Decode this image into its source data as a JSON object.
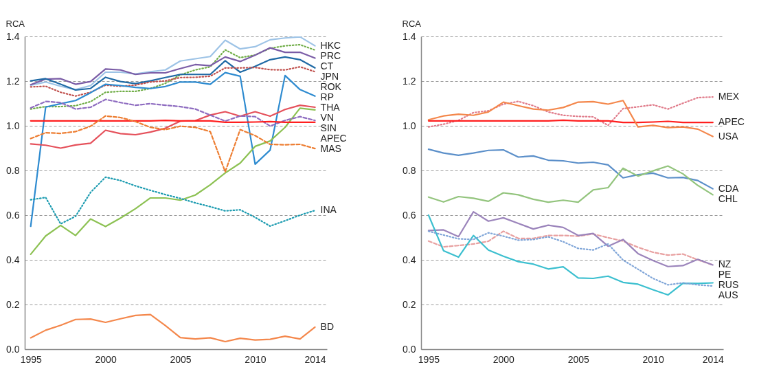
{
  "chart_data": [
    {
      "type": "line",
      "ylabel": "RCA",
      "x": [
        1995,
        1996,
        1997,
        1998,
        1999,
        2000,
        2001,
        2002,
        2003,
        2004,
        2005,
        2006,
        2007,
        2008,
        2009,
        2010,
        2011,
        2012,
        2013,
        2014
      ],
      "xlim": [
        1994.6,
        2014.8
      ],
      "xticks": [
        1995,
        2000,
        2005,
        2010,
        2014
      ],
      "ylim": [
        0,
        1.4
      ],
      "yticks": [
        {
          "value": 0,
          "label": "0.0"
        },
        {
          "value": 0.2,
          "label": "0.2"
        },
        {
          "value": 0.4,
          "label": "0.4"
        },
        {
          "value": 0.6,
          "label": "0.6"
        },
        {
          "value": 0.8,
          "label": "0.8"
        },
        {
          "value": 1,
          "label": "1.0"
        },
        {
          "value": 1.2,
          "label": "1.2"
        },
        {
          "value": 1.4,
          "label": "1.4"
        }
      ],
      "grid": "y",
      "series": [
        {
          "name": "HKC",
          "color": "#9dc3e6",
          "line_style": "solid",
          "values": [
            1.182,
            1.196,
            1.177,
            1.162,
            1.18,
            1.24,
            1.24,
            1.232,
            1.242,
            1.25,
            1.29,
            1.3,
            1.31,
            1.383,
            1.344,
            1.354,
            1.385,
            1.393,
            1.398,
            1.358
          ]
        },
        {
          "name": "PRC",
          "color": "#70ad47",
          "line_style": "dotted",
          "values": [
            1.075,
            1.086,
            1.086,
            1.09,
            1.108,
            1.15,
            1.154,
            1.154,
            1.167,
            1.19,
            1.228,
            1.25,
            1.264,
            1.34,
            1.305,
            1.317,
            1.347,
            1.358,
            1.363,
            1.339
          ]
        },
        {
          "name": "CT",
          "color": "#7a5ca6",
          "line_style": "solid",
          "values": [
            1.184,
            1.209,
            1.211,
            1.186,
            1.198,
            1.254,
            1.25,
            1.23,
            1.237,
            1.237,
            1.256,
            1.274,
            1.269,
            1.308,
            1.288,
            1.316,
            1.349,
            1.329,
            1.329,
            1.303
          ]
        },
        {
          "name": "JPN",
          "color": "#1f6aa5",
          "line_style": "solid",
          "values": [
            1.201,
            1.211,
            1.186,
            1.16,
            1.167,
            1.217,
            1.198,
            1.189,
            1.201,
            1.216,
            1.23,
            1.23,
            1.23,
            1.291,
            1.24,
            1.266,
            1.296,
            1.308,
            1.296,
            1.259
          ]
        },
        {
          "name": "ROK",
          "color": "#c0504d",
          "line_style": "dotted",
          "values": [
            1.174,
            1.177,
            1.15,
            1.133,
            1.15,
            1.182,
            1.177,
            1.182,
            1.196,
            1.201,
            1.216,
            1.217,
            1.222,
            1.259,
            1.259,
            1.261,
            1.251,
            1.25,
            1.264,
            1.242
          ]
        },
        {
          "name": "RP",
          "color": "#2e8bd0",
          "line_style": "solid",
          "values": [
            0.55,
            1.084,
            1.099,
            1.113,
            1.148,
            1.186,
            1.18,
            1.172,
            1.167,
            1.176,
            1.196,
            1.196,
            1.186,
            1.238,
            1.222,
            0.828,
            0.891,
            1.225,
            1.162,
            1.133
          ]
        },
        {
          "name": "THA",
          "color": "#e5505a",
          "line_style": "solid",
          "values": [
            0.919,
            0.913,
            0.9,
            0.914,
            0.922,
            0.98,
            0.965,
            0.96,
            0.972,
            0.989,
            1.021,
            1.023,
            1.048,
            1.063,
            1.043,
            1.063,
            1.043,
            1.073,
            1.092,
            1.083
          ]
        },
        {
          "name": "VN",
          "color": "#8cc152",
          "line_style": "solid",
          "values": [
            0.425,
            0.507,
            0.554,
            0.509,
            0.583,
            0.549,
            0.587,
            0.629,
            0.677,
            0.677,
            0.667,
            0.69,
            0.736,
            0.789,
            0.833,
            0.908,
            0.932,
            0.993,
            1.079,
            1.071
          ]
        },
        {
          "name": "SIN",
          "color": "#8e6cc0",
          "line_style": "dashed",
          "values": [
            1.08,
            1.109,
            1.104,
            1.075,
            1.083,
            1.118,
            1.104,
            1.092,
            1.099,
            1.092,
            1.086,
            1.075,
            1.048,
            1.021,
            1.044,
            1.041,
            0.999,
            1.024,
            1.041,
            1.024
          ]
        },
        {
          "name": "APEC",
          "color": "#ff1f1f",
          "line_style": "solid",
          "values": [
            1.022,
            1.022,
            1.022,
            1.022,
            1.022,
            1.022,
            1.022,
            1.022,
            1.022,
            1.024,
            1.022,
            1.022,
            1.022,
            1.016,
            1.016,
            1.017,
            1.019,
            1.016,
            1.016,
            1.016
          ]
        },
        {
          "name": "MAS",
          "color": "#ed7d31",
          "line_style": "dashed",
          "values": [
            0.943,
            0.969,
            0.966,
            0.974,
            0.998,
            1.044,
            1.037,
            1.019,
            0.993,
            0.983,
            0.998,
            0.993,
            0.974,
            0.794,
            0.983,
            0.956,
            0.917,
            0.915,
            0.917,
            0.898
          ]
        },
        {
          "name": "INA",
          "color": "#1b9bb0",
          "line_style": "dotted",
          "values": [
            0.669,
            0.679,
            0.561,
            0.595,
            0.702,
            0.77,
            0.755,
            0.731,
            0.711,
            0.692,
            0.675,
            0.655,
            0.638,
            0.619,
            0.624,
            0.59,
            0.551,
            0.575,
            0.6,
            0.621
          ]
        },
        {
          "name": "BD",
          "color": "#f4874b",
          "line_style": "solid",
          "values": [
            0.051,
            0.085,
            0.107,
            0.133,
            0.135,
            0.12,
            0.136,
            0.151,
            0.155,
            0.106,
            0.052,
            0.046,
            0.051,
            0.034,
            0.049,
            0.041,
            0.044,
            0.058,
            0.046,
            0.099
          ]
        }
      ]
    },
    {
      "type": "line",
      "ylabel": "RCA",
      "x": [
        1995,
        1996,
        1997,
        1998,
        1999,
        2000,
        2001,
        2002,
        2003,
        2004,
        2005,
        2006,
        2007,
        2008,
        2009,
        2010,
        2011,
        2012,
        2013,
        2014
      ],
      "xlim": [
        1994.5,
        2014.7
      ],
      "xticks": [
        1995,
        2000,
        2005,
        2010,
        2014
      ],
      "ylim": [
        0,
        1.4
      ],
      "yticks": [
        {
          "value": 0,
          "label": "0.0"
        },
        {
          "value": 0.2,
          "label": "0.2"
        },
        {
          "value": 0.4,
          "label": "0.4"
        },
        {
          "value": 0.6,
          "label": "0.6"
        },
        {
          "value": 0.8,
          "label": "0.8"
        },
        {
          "value": 1,
          "label": "1.0"
        },
        {
          "value": 1.2,
          "label": "1.2"
        },
        {
          "value": 1.4,
          "label": "1.4"
        }
      ],
      "grid": "y",
      "series": [
        {
          "name": "MEX",
          "color": "#e07b8a",
          "line_style": "dotted",
          "values": [
            0.995,
            1.007,
            1.024,
            1.059,
            1.067,
            1.097,
            1.109,
            1.09,
            1.062,
            1.047,
            1.042,
            1.04,
            1.002,
            1.077,
            1.085,
            1.094,
            1.075,
            1.101,
            1.126,
            1.129
          ]
        },
        {
          "name": "APEC",
          "color": "#ff1f1f",
          "line_style": "solid",
          "values": [
            1.022,
            1.022,
            1.022,
            1.022,
            1.022,
            1.022,
            1.022,
            1.022,
            1.022,
            1.025,
            1.022,
            1.022,
            1.022,
            1.015,
            1.015,
            1.017,
            1.02,
            1.015,
            1.015,
            1.015
          ]
        },
        {
          "name": "USA",
          "color": "#f4874b",
          "line_style": "solid",
          "values": [
            1.027,
            1.044,
            1.052,
            1.047,
            1.062,
            1.106,
            1.09,
            1.075,
            1.07,
            1.082,
            1.106,
            1.108,
            1.097,
            1.113,
            0.995,
            1.002,
            0.992,
            0.995,
            0.985,
            0.952
          ]
        },
        {
          "name": "CDA",
          "color": "#5b8fc9",
          "line_style": "solid",
          "values": [
            0.895,
            0.878,
            0.868,
            0.878,
            0.89,
            0.892,
            0.86,
            0.865,
            0.846,
            0.843,
            0.833,
            0.837,
            0.825,
            0.767,
            0.781,
            0.788,
            0.767,
            0.769,
            0.755,
            0.718
          ]
        },
        {
          "name": "CHL",
          "color": "#93c47d",
          "line_style": "solid",
          "values": [
            0.681,
            0.659,
            0.683,
            0.676,
            0.662,
            0.7,
            0.691,
            0.671,
            0.658,
            0.667,
            0.658,
            0.713,
            0.723,
            0.81,
            0.775,
            0.798,
            0.82,
            0.785,
            0.733,
            0.691
          ]
        },
        {
          "name": "NZ",
          "color": "#e8a0a0",
          "line_style": "dashed",
          "values": [
            0.484,
            0.458,
            0.464,
            0.471,
            0.483,
            0.528,
            0.496,
            0.496,
            0.509,
            0.509,
            0.506,
            0.516,
            0.499,
            0.484,
            0.456,
            0.434,
            0.421,
            0.426,
            0.4,
            0.377
          ]
        },
        {
          "name": "PE",
          "color": "#9b84bb",
          "line_style": "solid",
          "values": [
            0.531,
            0.534,
            0.504,
            0.615,
            0.573,
            0.588,
            0.563,
            0.538,
            0.555,
            0.545,
            0.509,
            0.518,
            0.461,
            0.491,
            0.428,
            0.397,
            0.37,
            0.374,
            0.402,
            0.377
          ]
        },
        {
          "name": "RUS",
          "color": "#3bbfcf",
          "line_style": "solid",
          "values": [
            0.6,
            0.441,
            0.412,
            0.509,
            0.444,
            0.416,
            0.392,
            0.381,
            0.359,
            0.369,
            0.319,
            0.317,
            0.327,
            0.299,
            0.291,
            0.266,
            0.243,
            0.295,
            0.294,
            0.297
          ]
        },
        {
          "name": "AUS",
          "color": "#7fa5d8",
          "line_style": "dotted",
          "values": [
            0.528,
            0.511,
            0.494,
            0.491,
            0.521,
            0.506,
            0.488,
            0.491,
            0.503,
            0.481,
            0.451,
            0.444,
            0.471,
            0.399,
            0.358,
            0.317,
            0.288,
            0.297,
            0.288,
            0.283
          ]
        }
      ]
    }
  ]
}
